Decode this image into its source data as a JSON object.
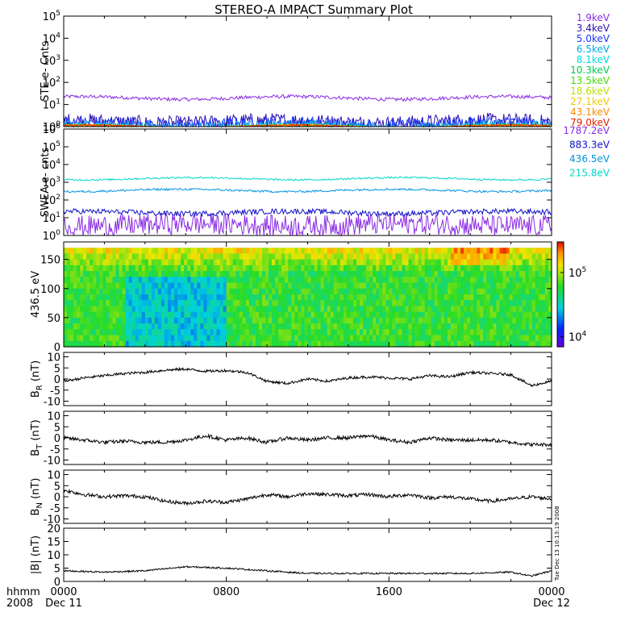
{
  "title": "STEREO-A IMPACT Summary Plot",
  "timestamp": "Tue Dec 13 10:13:19 2008",
  "x_axis": {
    "row1_label": "hhmm",
    "row2_label": "2008",
    "ticks": [
      {
        "label": "0000",
        "sub": "Dec 11",
        "hour": 0
      },
      {
        "label": "0800",
        "sub": "",
        "hour": 8
      },
      {
        "label": "1600",
        "sub": "",
        "hour": 16
      },
      {
        "label": "0000",
        "sub": "Dec 12",
        "hour": 24
      }
    ]
  },
  "colorbar": {
    "tick_labels": [
      {
        "base": "10",
        "exp": "4",
        "value": 10000
      },
      {
        "base": "10",
        "exp": "5",
        "value": 100000
      }
    ],
    "range": [
      7000,
      300000
    ]
  },
  "chart_data": [
    {
      "type": "line",
      "ylabel": "STE e- Cnts",
      "yscale": "log",
      "ylim": [
        1,
        100000
      ],
      "y_ticks": [
        {
          "base": "10",
          "exp": "0"
        },
        {
          "base": "10",
          "exp": "1"
        },
        {
          "base": "10",
          "exp": "2"
        },
        {
          "base": "10",
          "exp": "3"
        },
        {
          "base": "10",
          "exp": "4"
        },
        {
          "base": "10",
          "exp": "5"
        }
      ],
      "x_range_hours": [
        0,
        24
      ],
      "series": [
        {
          "name": "1.9keV",
          "color": "#8a2be2",
          "level": 20,
          "noise": 0.08
        },
        {
          "name": "3.4keV",
          "color": "#2a0fb0",
          "level": 1.6,
          "noise": 0.35
        },
        {
          "name": "5.0keV",
          "color": "#1a35ff",
          "level": 1.3,
          "noise": 0.3
        },
        {
          "name": "6.5keV",
          "color": "#00a8e8",
          "level": 1.1,
          "noise": 0.2
        },
        {
          "name": "8.1keV",
          "color": "#00d8d8",
          "level": 1.0,
          "noise": 0.1
        },
        {
          "name": "10.3keV",
          "color": "#00c850",
          "level": 1.0,
          "noise": 0.05
        },
        {
          "name": "13.5keV",
          "color": "#40e000",
          "level": 1.0,
          "noise": 0.05
        },
        {
          "name": "18.6keV",
          "color": "#b8e000",
          "level": 1.0,
          "noise": 0.05
        },
        {
          "name": "27.1keV",
          "color": "#f0c800",
          "level": 1.0,
          "noise": 0.05
        },
        {
          "name": "43.1keV",
          "color": "#ff8c00",
          "level": 1.0,
          "noise": 0.05
        },
        {
          "name": "79.0keV",
          "color": "#e02000",
          "level": 1.0,
          "noise": 0.05
        }
      ]
    },
    {
      "type": "line",
      "ylabel": "SWEA e- cnts",
      "yscale": "log",
      "ylim": [
        1,
        1000000
      ],
      "y_ticks": [
        {
          "base": "10",
          "exp": "0"
        },
        {
          "base": "10",
          "exp": "1"
        },
        {
          "base": "10",
          "exp": "2"
        },
        {
          "base": "10",
          "exp": "3"
        },
        {
          "base": "10",
          "exp": "4"
        },
        {
          "base": "10",
          "exp": "5"
        },
        {
          "base": "10",
          "exp": "6"
        }
      ],
      "x_range_hours": [
        0,
        24
      ],
      "series": [
        {
          "name": "1787.2eV",
          "color": "#8a2be2",
          "level": 4,
          "noise": 0.6
        },
        {
          "name": "883.3eV",
          "color": "#1010c8",
          "level": 20,
          "noise": 0.15
        },
        {
          "name": "436.5eV",
          "color": "#0095e0",
          "level": 350,
          "noise": 0.06
        },
        {
          "name": "215.8eV",
          "color": "#00d8c8",
          "level": 1600,
          "noise": 0.05
        }
      ]
    },
    {
      "type": "heatmap",
      "ylabel": "436.5 eV",
      "ylim": [
        0,
        180
      ],
      "y_ticks": [
        0,
        50,
        100,
        150
      ],
      "x_range_hours": [
        0,
        24
      ],
      "y_data_max": 170,
      "value_range": [
        7000,
        300000
      ]
    },
    {
      "type": "line",
      "ylabel_main": "B",
      "ylabel_sub": "R",
      "ylabel_unit": " (nT)",
      "ylim": [
        -12,
        12
      ],
      "y_ticks": [
        -10,
        -5,
        0,
        5,
        10
      ],
      "x_range_hours": [
        0,
        24
      ],
      "keypoints": [
        [
          0,
          -1
        ],
        [
          1,
          0.5
        ],
        [
          2,
          1.5
        ],
        [
          3,
          2.5
        ],
        [
          4,
          3
        ],
        [
          5,
          4
        ],
        [
          6,
          4.5
        ],
        [
          7,
          3.5
        ],
        [
          8,
          3.8
        ],
        [
          9,
          3
        ],
        [
          10,
          -1
        ],
        [
          11,
          -2
        ],
        [
          12,
          0
        ],
        [
          13,
          -1
        ],
        [
          14,
          0.5
        ],
        [
          15,
          1
        ],
        [
          16,
          0.5
        ],
        [
          17,
          0
        ],
        [
          18,
          1.5
        ],
        [
          19,
          1
        ],
        [
          20,
          3
        ],
        [
          21,
          2.5
        ],
        [
          22,
          2
        ],
        [
          23,
          -3
        ],
        [
          24,
          -1
        ]
      ],
      "noise": 0.6,
      "color": "#000000"
    },
    {
      "type": "line",
      "ylabel_main": "B",
      "ylabel_sub": "T",
      "ylabel_unit": " (nT)",
      "ylim": [
        -12,
        12
      ],
      "y_ticks": [
        -10,
        -5,
        0,
        5,
        10
      ],
      "x_range_hours": [
        0,
        24
      ],
      "keypoints": [
        [
          0,
          0
        ],
        [
          1,
          -1
        ],
        [
          2,
          -2
        ],
        [
          3,
          -1.5
        ],
        [
          4,
          -2
        ],
        [
          5,
          -2
        ],
        [
          6,
          -1
        ],
        [
          7,
          1
        ],
        [
          8,
          -1
        ],
        [
          9,
          0
        ],
        [
          10,
          -2
        ],
        [
          11,
          0
        ],
        [
          12,
          -1
        ],
        [
          13,
          0
        ],
        [
          14,
          0
        ],
        [
          15,
          1
        ],
        [
          16,
          -1
        ],
        [
          17,
          -2
        ],
        [
          18,
          0
        ],
        [
          19,
          -1
        ],
        [
          20,
          -1
        ],
        [
          21,
          -1
        ],
        [
          22,
          -2
        ],
        [
          23,
          -3
        ],
        [
          24,
          -3
        ]
      ],
      "noise": 0.8,
      "color": "#000000"
    },
    {
      "type": "line",
      "ylabel_main": "B",
      "ylabel_sub": "N",
      "ylabel_unit": " (nT)",
      "ylim": [
        -12,
        12
      ],
      "y_ticks": [
        -10,
        -5,
        0,
        5,
        10
      ],
      "x_range_hours": [
        0,
        24
      ],
      "keypoints": [
        [
          0,
          3
        ],
        [
          1,
          1
        ],
        [
          2,
          0
        ],
        [
          3,
          0.5
        ],
        [
          4,
          0
        ],
        [
          5,
          -2
        ],
        [
          6,
          -3
        ],
        [
          7,
          -2
        ],
        [
          8,
          -2.5
        ],
        [
          9,
          -1
        ],
        [
          10,
          1
        ],
        [
          11,
          0
        ],
        [
          12,
          1.5
        ],
        [
          13,
          1
        ],
        [
          14,
          0.5
        ],
        [
          15,
          1
        ],
        [
          16,
          0
        ],
        [
          17,
          1
        ],
        [
          18,
          -0.5
        ],
        [
          19,
          0
        ],
        [
          20,
          -1
        ],
        [
          21,
          -2
        ],
        [
          22,
          -1
        ],
        [
          23,
          0
        ],
        [
          24,
          -1
        ]
      ],
      "noise": 0.8,
      "color": "#000000"
    },
    {
      "type": "line",
      "ylabel_main": "|B|",
      "ylabel_sub": "",
      "ylabel_unit": " (nT)",
      "ylim": [
        0,
        20
      ],
      "y_ticks": [
        0,
        5,
        10,
        15,
        20
      ],
      "x_range_hours": [
        0,
        24
      ],
      "keypoints": [
        [
          0,
          4
        ],
        [
          2,
          3.5
        ],
        [
          4,
          4
        ],
        [
          6,
          5.5
        ],
        [
          8,
          5
        ],
        [
          10,
          4
        ],
        [
          12,
          3
        ],
        [
          14,
          3
        ],
        [
          16,
          3
        ],
        [
          18,
          3
        ],
        [
          20,
          3
        ],
        [
          22,
          3.5
        ],
        [
          23,
          2
        ],
        [
          24,
          4
        ]
      ],
      "noise": 0.3,
      "color": "#000000"
    }
  ]
}
